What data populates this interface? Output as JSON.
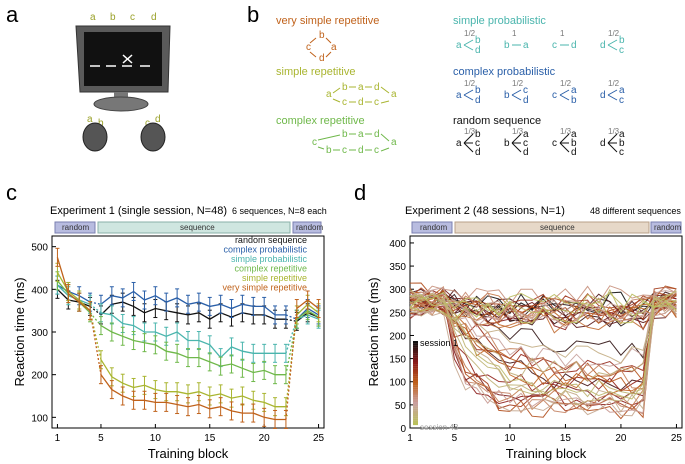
{
  "panel_labels": {
    "a": "a",
    "b": "b",
    "c": "c",
    "d": "d"
  },
  "panel_a": {
    "keys": [
      "a",
      "b",
      "c",
      "d"
    ],
    "screen_text": "_ _ X _",
    "key_labels_left": [
      "a",
      "b"
    ],
    "key_labels_right": [
      "c",
      "d"
    ],
    "colors": {
      "label": "#9aa12a",
      "monitor": "#555555",
      "screen": "#111111"
    }
  },
  "panel_b": {
    "very_simple": {
      "title": "very simple repetitive",
      "color": "#c0621b",
      "nodes": [
        "b",
        "c",
        "a",
        "d"
      ]
    },
    "simple_rep": {
      "title": "simple repetitive",
      "color": "#a9b530",
      "nodes": [
        "b",
        "a",
        "d",
        "a",
        "c",
        "d",
        "c",
        "a"
      ]
    },
    "complex_rep": {
      "title": "complex repetitive",
      "color": "#6fb84a",
      "nodes": [
        "b",
        "a",
        "d",
        "a",
        "c",
        "d",
        "c",
        "b",
        "c"
      ]
    },
    "simple_prob": {
      "title": "simple probabilistic",
      "color": "#4ab5ad",
      "groups": [
        {
          "from": "a",
          "to": [
            "b",
            "d"
          ],
          "p": "1/2"
        },
        {
          "from": "b",
          "to": [
            "a"
          ],
          "p": "1"
        },
        {
          "from": "c",
          "to": [
            "d"
          ],
          "p": "1"
        },
        {
          "from": "d",
          "to": [
            "b",
            "c"
          ],
          "p": "1/2"
        }
      ]
    },
    "complex_prob": {
      "title": "complex probabilistic",
      "color": "#2a5fa8",
      "groups": [
        {
          "from": "a",
          "to": [
            "b",
            "d"
          ],
          "p": "1/2"
        },
        {
          "from": "b",
          "to": [
            "c",
            "d"
          ],
          "p": "1/2"
        },
        {
          "from": "c",
          "to": [
            "a",
            "b"
          ],
          "p": "1/2"
        },
        {
          "from": "d",
          "to": [
            "a",
            "c"
          ],
          "p": "1/2"
        }
      ]
    },
    "random_seq": {
      "title": "random sequence",
      "color": "#111111",
      "groups": [
        {
          "from": "a",
          "to": [
            "b",
            "c",
            "d"
          ],
          "p": "1/3"
        },
        {
          "from": "b",
          "to": [
            "a",
            "c",
            "d"
          ],
          "p": "1/3"
        },
        {
          "from": "c",
          "to": [
            "a",
            "b",
            "d"
          ],
          "p": "1/3"
        },
        {
          "from": "d",
          "to": [
            "a",
            "b",
            "c"
          ],
          "p": "1/3"
        }
      ]
    }
  },
  "panel_c": {
    "title": "Experiment 1 (single session, N=48)",
    "note": "6 sequences, N=8 each",
    "phase_labels": [
      "random",
      "sequence",
      "random"
    ],
    "legend": [
      "random sequence",
      "complex probabilistic",
      "simple probabilistic",
      "complex repetitive",
      "simple repetitive",
      "very simple repetitive"
    ]
  },
  "panel_d": {
    "title": "Experiment 2 (48 sessions, N=1)",
    "note": "48 different sequences",
    "phase_labels": [
      "random",
      "sequence",
      "random"
    ],
    "colorbar_top": "session 1",
    "colorbar_bottom": "session 48"
  },
  "chart_data": [
    {
      "type": "line",
      "title": "Experiment 1 (single session, N=48)",
      "xlabel": "Training block",
      "ylabel": "Reaction time (ms)",
      "xlim": [
        0.5,
        25.5
      ],
      "ylim": [
        75,
        525
      ],
      "xticks": [
        1,
        5,
        10,
        15,
        20,
        25
      ],
      "yticks": [
        100,
        200,
        300,
        400,
        500
      ],
      "legend_position": "center-right",
      "x": [
        1,
        2,
        3,
        4,
        5,
        6,
        7,
        8,
        9,
        10,
        11,
        12,
        13,
        14,
        15,
        16,
        17,
        18,
        19,
        20,
        21,
        22,
        23,
        24,
        25
      ],
      "series": [
        {
          "name": "random sequence",
          "color": "#111111",
          "values": [
            400,
            375,
            370,
            360,
            340,
            365,
            370,
            360,
            345,
            355,
            350,
            345,
            340,
            345,
            330,
            345,
            335,
            345,
            340,
            340,
            330,
            330,
            325,
            345,
            335
          ]
        },
        {
          "name": "complex probabilistic",
          "color": "#2a5fa8",
          "values": [
            410,
            395,
            385,
            370,
            365,
            385,
            380,
            395,
            375,
            385,
            370,
            380,
            365,
            370,
            360,
            365,
            355,
            365,
            360,
            360,
            340,
            340,
            330,
            355,
            340
          ]
        },
        {
          "name": "simple probabilistic",
          "color": "#4ab5ad",
          "values": [
            410,
            385,
            375,
            365,
            345,
            340,
            320,
            315,
            300,
            300,
            290,
            300,
            280,
            280,
            270,
            240,
            265,
            255,
            250,
            250,
            250,
            250,
            330,
            340,
            330
          ]
        },
        {
          "name": "complex repetitive",
          "color": "#6fb84a",
          "values": [
            420,
            390,
            370,
            345,
            315,
            300,
            290,
            280,
            275,
            270,
            255,
            250,
            240,
            240,
            230,
            220,
            225,
            215,
            205,
            210,
            200,
            200,
            330,
            350,
            335
          ]
        },
        {
          "name": "simple repetitive",
          "color": "#a9b530",
          "values": [
            440,
            395,
            375,
            350,
            235,
            195,
            180,
            170,
            175,
            165,
            160,
            160,
            155,
            160,
            150,
            155,
            145,
            150,
            140,
            135,
            125,
            125,
            340,
            365,
            345
          ]
        },
        {
          "name": "very simple repetitive",
          "color": "#c0621b",
          "values": [
            475,
            390,
            370,
            350,
            200,
            165,
            150,
            140,
            140,
            135,
            135,
            130,
            125,
            130,
            120,
            125,
            115,
            110,
            110,
            100,
            95,
            95,
            355,
            375,
            355
          ]
        }
      ]
    },
    {
      "type": "line",
      "title": "Experiment 2 (48 sessions, N=1)",
      "xlabel": "Training block",
      "ylabel": "Reaction time (ms)",
      "xlim": [
        1,
        25.5
      ],
      "ylim": [
        0,
        415
      ],
      "xticks": [
        1,
        5,
        10,
        15,
        20,
        25
      ],
      "yticks": [
        0,
        50,
        100,
        150,
        200,
        250,
        300,
        350,
        400
      ],
      "colorbar": {
        "from": "session 1",
        "to": "session 48",
        "colors": [
          "#111111",
          "#8b1a1a",
          "#c0621b",
          "#c9a0a0",
          "#b9c05a"
        ]
      },
      "series_count": 48
    }
  ]
}
